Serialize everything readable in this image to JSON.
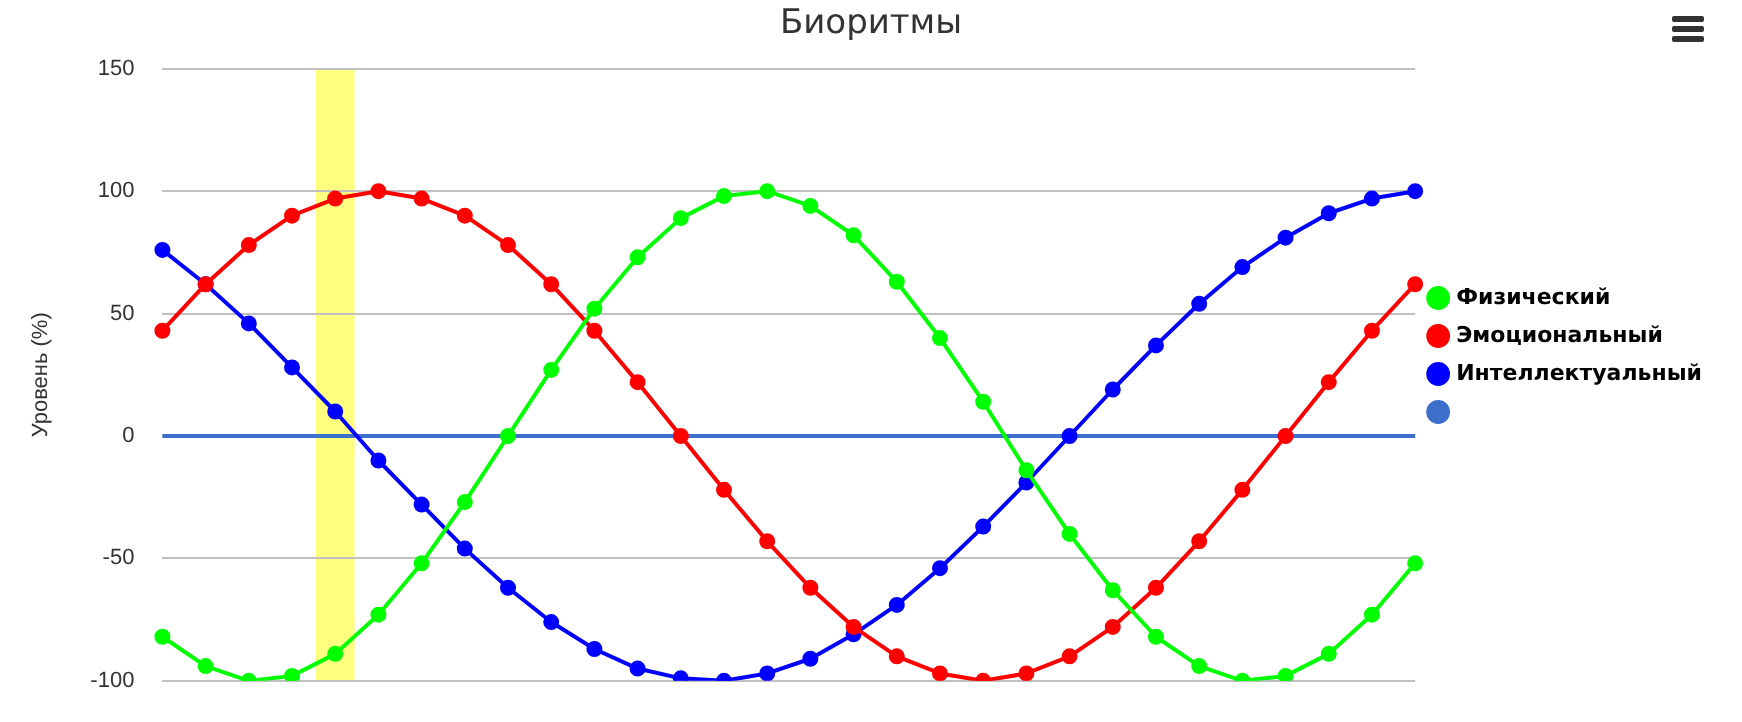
{
  "chart_data": {
    "type": "line",
    "title": "Биоритмы",
    "ylabel": "Уровень (%)",
    "categories": [
      null,
      null,
      null,
      null,
      null,
      null,
      null,
      null,
      null,
      null,
      null,
      null,
      null,
      null,
      null,
      null,
      null,
      null,
      null,
      null,
      null,
      null,
      null,
      null,
      null,
      null,
      null,
      null,
      null,
      null
    ],
    "series": [
      {
        "name": "Физический",
        "color": "#00ff00",
        "values": [
          -82,
          -94,
          -100,
          -98,
          -89,
          -73,
          -52,
          -27,
          0,
          27,
          52,
          73,
          89,
          98,
          100,
          94,
          82,
          63,
          40,
          14,
          -14,
          -40,
          -63,
          -82,
          -94,
          -100,
          -98,
          -89,
          -73,
          -52
        ]
      },
      {
        "name": "Эмоциональный",
        "color": "#ff0000",
        "values": [
          43,
          62,
          78,
          90,
          97,
          100,
          97,
          90,
          78,
          62,
          43,
          22,
          0,
          -22,
          -43,
          -62,
          -78,
          -90,
          -97,
          -100,
          -97,
          -90,
          -78,
          -62,
          -43,
          -22,
          0,
          22,
          43,
          62
        ]
      },
      {
        "name": "Интеллектуальный",
        "color": "#0000ff",
        "values": [
          76,
          62,
          46,
          28,
          10,
          -10,
          -28,
          -46,
          -62,
          -76,
          -87,
          -95,
          -99,
          -100,
          -97,
          -91,
          -81,
          -69,
          -54,
          -37,
          -19,
          0,
          19,
          37,
          54,
          69,
          81,
          91,
          97,
          100
        ]
      },
      {
        "color": "#3d6fcc",
        "marker": "none",
        "values": [
          0,
          0,
          0,
          0,
          0,
          0,
          0,
          0,
          0,
          0,
          0,
          0,
          0,
          0,
          0,
          0,
          0,
          0,
          0,
          0,
          0,
          0,
          0,
          0,
          0,
          0,
          0,
          0,
          0,
          0
        ]
      }
    ],
    "ylim": [
      -100,
      150
    ],
    "yticks": [
      -100,
      -50,
      0,
      50,
      100,
      150
    ],
    "grid": "y",
    "legend": "right",
    "marker": "circle",
    "tick_labels": "y"
  }
}
